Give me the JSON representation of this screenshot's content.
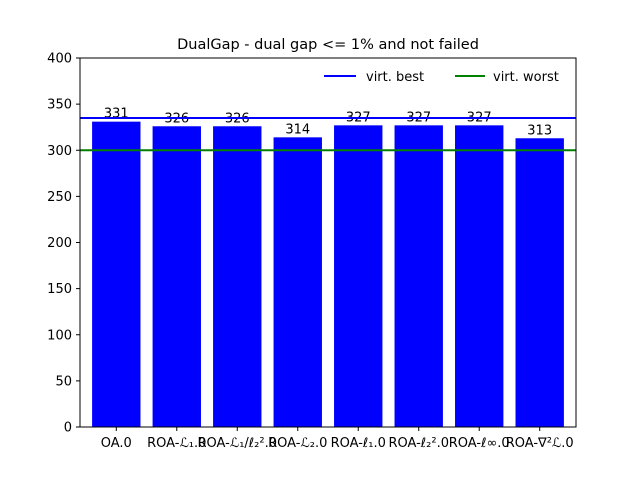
{
  "chart_data": {
    "type": "bar",
    "title": "DualGap - dual gap <= 1% and not failed",
    "xlabel": "",
    "ylabel": "",
    "categories": [
      "OA.0",
      "ROA-ℒ₁.0",
      "ROA-ℒ₁/ℓ₂².0",
      "ROA-ℒ₂.0",
      "ROA-ℓ₁.0",
      "ROA-ℓ₂².0",
      "ROA-ℓ∞.0",
      "ROA-∇²ℒ.0"
    ],
    "values": [
      331,
      326,
      326,
      314,
      327,
      327,
      327,
      313
    ],
    "ylim": [
      0,
      400
    ],
    "yticks": [
      0,
      50,
      100,
      150,
      200,
      250,
      300,
      350,
      400
    ],
    "bar_color": "#0000ff",
    "reference_lines": [
      {
        "name": "virt. best",
        "value": 335,
        "color": "#0000ff"
      },
      {
        "name": "virt. worst",
        "value": 300,
        "color": "#008000"
      }
    ],
    "legend_position": "top-right",
    "grid": false
  }
}
